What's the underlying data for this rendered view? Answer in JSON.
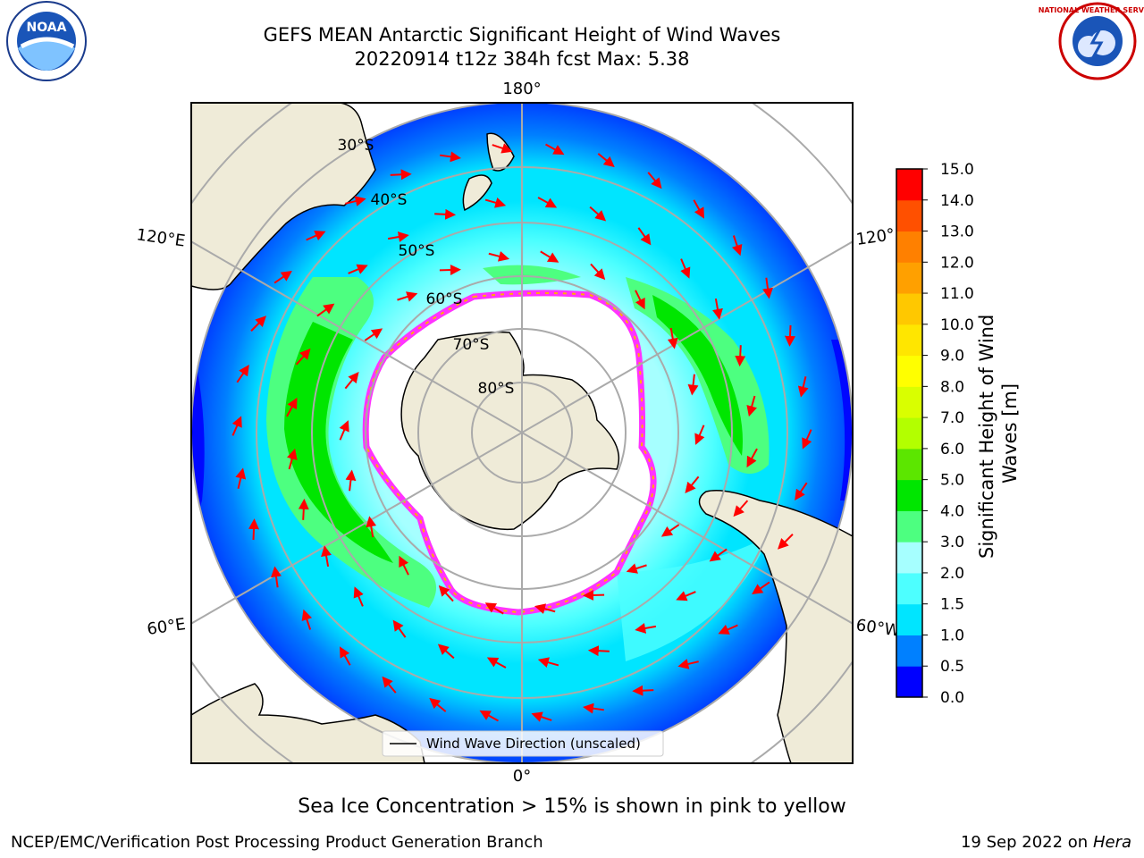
{
  "title": {
    "line1": "GEFS MEAN Antarctic Significant Height of Wind Waves",
    "line2": "20220914 t12z 384h fcst   Max: 5.38"
  },
  "map": {
    "projection": "south-polar-stereographic",
    "longitude_labels": [
      "180°",
      "120°E",
      "120°",
      "60°E",
      "60°W",
      "0°"
    ],
    "latitude_labels": [
      "30°S",
      "40°S",
      "50°S",
      "60°S",
      "70°S",
      "80°S"
    ],
    "legend_label": "Wind Wave Direction (unscaled)",
    "colors": {
      "land": "#efebd8",
      "ocean_deep": "#0000ff",
      "ice_edge": "#ff33ff",
      "arrow": "#ff0000"
    }
  },
  "colorbar": {
    "label": "Significant Height of Wind Waves [m]",
    "label_line1": "Significant Height of Wind",
    "label_line2": "Waves [m]",
    "ticks": [
      "0.0",
      "0.5",
      "1.0",
      "1.5",
      "2.0",
      "3.0",
      "4.0",
      "5.0",
      "6.0",
      "7.0",
      "8.0",
      "9.0",
      "10.0",
      "11.0",
      "12.0",
      "13.0",
      "14.0",
      "15.0"
    ],
    "colors": [
      "#0000ff",
      "#0080ff",
      "#00e5ff",
      "#4dffff",
      "#a6ffff",
      "#4dff80",
      "#00e600",
      "#5ce600",
      "#b3ff00",
      "#d9ff00",
      "#ffff00",
      "#ffe600",
      "#ffc800",
      "#ffa000",
      "#ff8000",
      "#ff5000",
      "#ff0000"
    ]
  },
  "notes": {
    "ice": "Sea Ice Concentration > 15% is shown in pink to yellow",
    "credit": "NCEP/EMC/Verification Post Processing Product Generation Branch",
    "date": "19 Sep 2022 on",
    "machine": "Hera"
  },
  "logos": {
    "noaa": "NOAA",
    "nws": "NATIONAL WEATHER SERVICE"
  }
}
